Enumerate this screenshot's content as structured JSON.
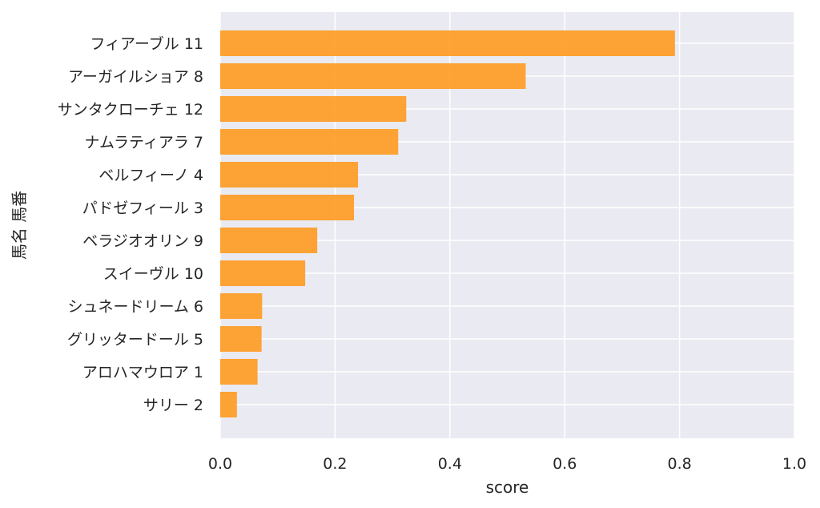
{
  "chart_data": {
    "type": "bar",
    "orientation": "horizontal",
    "title": "",
    "xlabel": "score",
    "ylabel": "馬名 馬番",
    "xlim": [
      0.0,
      1.0
    ],
    "xticks": [
      "0.0",
      "0.2",
      "0.4",
      "0.6",
      "0.8",
      "1.0"
    ],
    "grid": true,
    "bar_color": "#ff9a1f",
    "background_color": "#eaeaf2",
    "categories": [
      "フィアーブル 11",
      "アーガイルショア 8",
      "サンタクローチェ 12",
      "ナムラティアラ 7",
      "ベルフィーノ 4",
      "パドゼフィール 3",
      "ベラジオオリン 9",
      "スイーヴル 10",
      "シュネードリーム 6",
      "グリッタードール 5",
      "アロハマウロア 1",
      "サリー 2"
    ],
    "values": [
      0.792,
      0.532,
      0.324,
      0.31,
      0.24,
      0.233,
      0.169,
      0.148,
      0.073,
      0.072,
      0.065,
      0.029
    ]
  }
}
